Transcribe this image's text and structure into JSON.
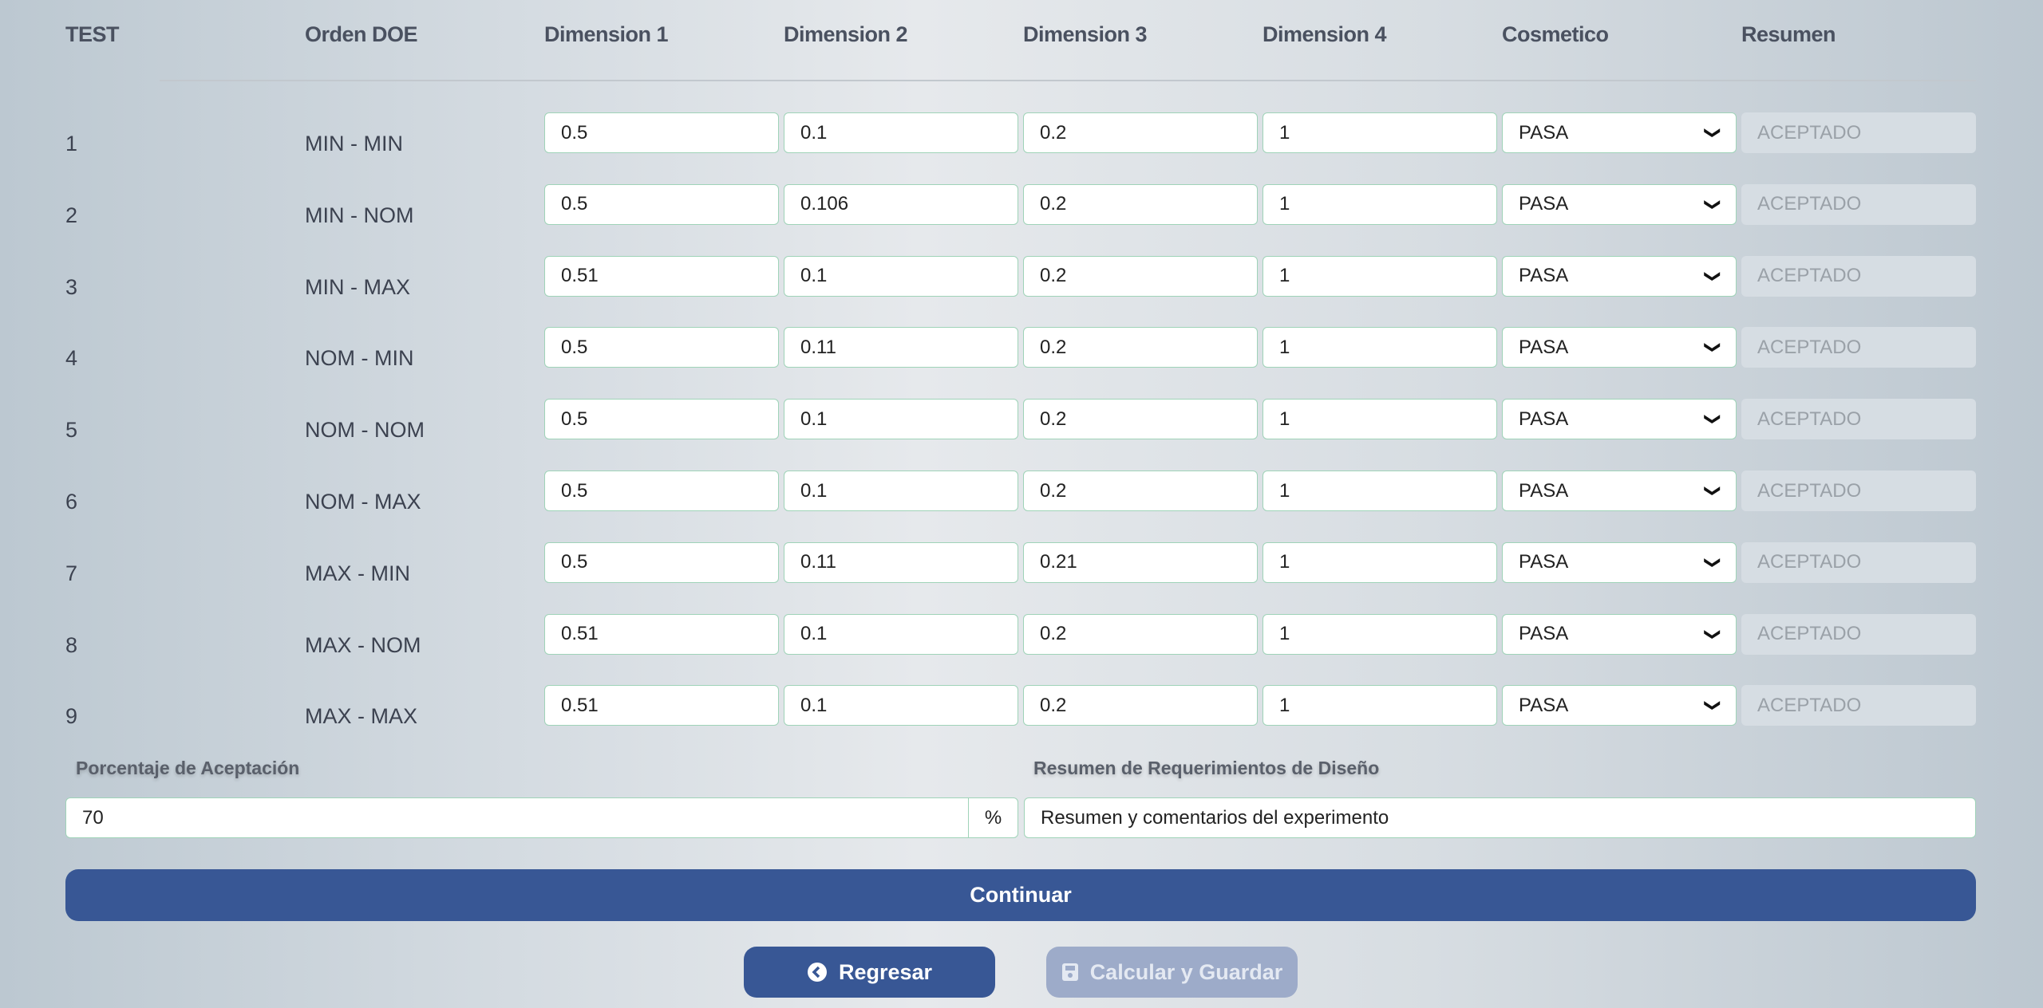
{
  "headers": [
    "TEST",
    "Orden DOE",
    "Dimension 1",
    "Dimension 2",
    "Dimension 3",
    "Dimension 4",
    "Cosmetico",
    "Resumen"
  ],
  "rows": [
    {
      "test": "1",
      "orden": "MIN - MIN",
      "d1": "0.5",
      "d2": "0.1",
      "d3": "0.2",
      "d4": "1",
      "cosmetico": "PASA",
      "resumen": "ACEPTADO"
    },
    {
      "test": "2",
      "orden": "MIN - NOM",
      "d1": "0.5",
      "d2": "0.106",
      "d3": "0.2",
      "d4": "1",
      "cosmetico": "PASA",
      "resumen": "ACEPTADO"
    },
    {
      "test": "3",
      "orden": "MIN - MAX",
      "d1": "0.51",
      "d2": "0.1",
      "d3": "0.2",
      "d4": "1",
      "cosmetico": "PASA",
      "resumen": "ACEPTADO"
    },
    {
      "test": "4",
      "orden": "NOM - MIN",
      "d1": "0.5",
      "d2": "0.11",
      "d3": "0.2",
      "d4": "1",
      "cosmetico": "PASA",
      "resumen": "ACEPTADO"
    },
    {
      "test": "5",
      "orden": "NOM - NOM",
      "d1": "0.5",
      "d2": "0.1",
      "d3": "0.2",
      "d4": "1",
      "cosmetico": "PASA",
      "resumen": "ACEPTADO"
    },
    {
      "test": "6",
      "orden": "NOM - MAX",
      "d1": "0.5",
      "d2": "0.1",
      "d3": "0.2",
      "d4": "1",
      "cosmetico": "PASA",
      "resumen": "ACEPTADO"
    },
    {
      "test": "7",
      "orden": "MAX - MIN",
      "d1": "0.5",
      "d2": "0.11",
      "d3": "0.21",
      "d4": "1",
      "cosmetico": "PASA",
      "resumen": "ACEPTADO"
    },
    {
      "test": "8",
      "orden": "MAX - NOM",
      "d1": "0.51",
      "d2": "0.1",
      "d3": "0.2",
      "d4": "1",
      "cosmetico": "PASA",
      "resumen": "ACEPTADO"
    },
    {
      "test": "9",
      "orden": "MAX - MAX",
      "d1": "0.51",
      "d2": "0.1",
      "d3": "0.2",
      "d4": "1",
      "cosmetico": "PASA",
      "resumen": "ACEPTADO"
    }
  ],
  "footer": {
    "porcentaje_label": "Porcentaje de Aceptación",
    "porcentaje_value": "70",
    "porcentaje_unit": "%",
    "resumen_label": "Resumen de Requerimientos de Diseño",
    "resumen_value": "Resumen y comentarios del experimento"
  },
  "buttons": {
    "continuar": "Continuar",
    "regresar": "Regresar",
    "calcular": "Calcular y Guardar"
  },
  "icons": {
    "regresar": "chevron-circle-left-icon",
    "calcular": "floppy-disk-icon",
    "select": "chevron-down-icon"
  },
  "colors": {
    "primary": "#385795",
    "disabled": "#9dabc9",
    "input_border": "#9fd3b8"
  }
}
